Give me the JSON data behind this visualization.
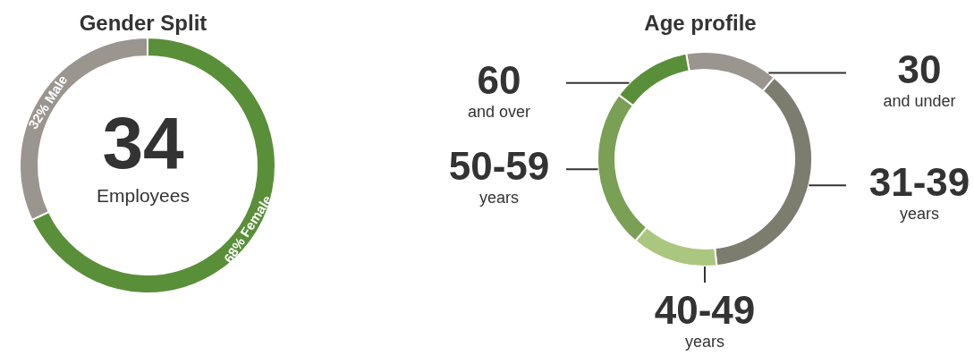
{
  "chart_data": [
    {
      "type": "donut",
      "title": "Gender Split",
      "categories": [
        "Female",
        "Male"
      ],
      "values": [
        68,
        32
      ],
      "colors": [
        "#5a8f3a",
        "#9b958f"
      ],
      "value_labels": [
        "68%",
        "32%"
      ],
      "annotations": [
        "34",
        "Employees"
      ]
    },
    {
      "type": "donut",
      "title": "Age profile",
      "categories": [
        "30 and under",
        "31-39 years",
        "40-49 years",
        "50-59 years",
        "60 and over"
      ],
      "values": [
        14,
        37,
        13,
        24,
        12
      ],
      "colors": [
        "#9a958e",
        "#7d7d6f",
        "#abc77f",
        "#79a055",
        "#5a8f3a"
      ]
    }
  ]
}
